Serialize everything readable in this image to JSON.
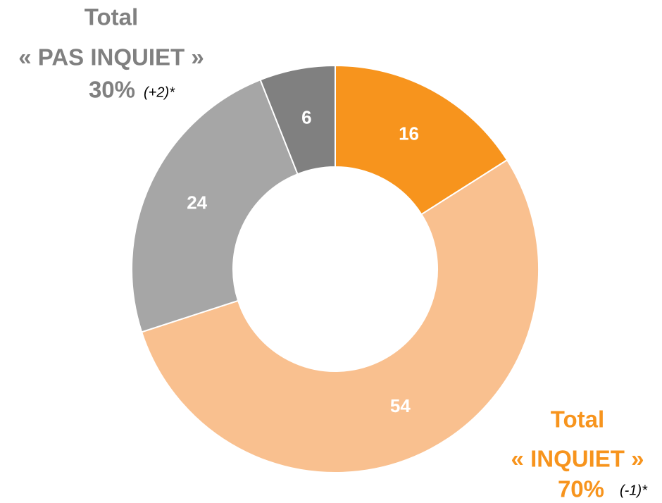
{
  "chart_data": {
    "type": "donut",
    "values": [
      16,
      54,
      24,
      6
    ],
    "colors": [
      "#f7941d",
      "#f9c08f",
      "#a6a6a6",
      "#808080"
    ],
    "annotations": [
      {
        "title": "Total",
        "label": "« PAS INQUIET »",
        "total": "30%",
        "change": "(+2)*",
        "color": "#808080"
      },
      {
        "title": "Total",
        "label": "« INQUIET »",
        "total": "70%",
        "change": "(-1)*",
        "color": "#f7941d"
      }
    ]
  }
}
